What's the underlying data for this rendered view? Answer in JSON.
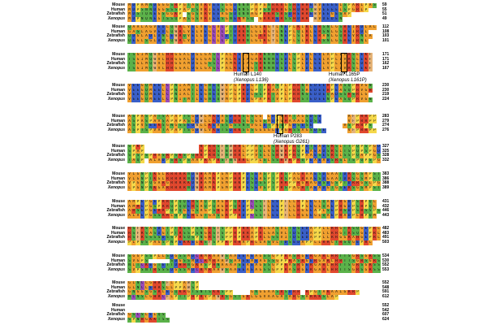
{
  "species": [
    "Mouse",
    "Human",
    "Zebrafish",
    "Xenopus"
  ],
  "palette": {
    "green": "#5bb24a",
    "orange": "#f0a030",
    "yellow": "#f5d84a",
    "red": "#e0482e",
    "blue": "#3a5fc8",
    "purple": "#9a4cb8",
    "tan": "#e6b478",
    "gap": "#ffffff"
  },
  "blocks": [
    {
      "numbers": [
        "59",
        "55",
        "51",
        "49"
      ],
      "seqs": [
        "MDPAMNDGGGSRPGTASVRVEESGGDNNNPMPGNRKRGSHEHHEWVEEEELSPARLPAS",
        "MDPSNNDGGSSSPAPTSVRIEESGGENNSPVPSNRKRGSHDHHTWVEEEELSPGRLP--",
        "MDSTQNEGSGGKP-SGSVRVEEAGSDQNNAGPRKRSRSDHEHREWVEEGESAP----",
        "MDPNQNEGTSSQPASGSVRIEESGNEKMSQ-GRKRERSSHDHR-WVDEDEN------"
      ]
    },
    {
      "numbers": [
        "112",
        "108",
        "103",
        "101"
      ],
      "seqs": [
        "QAALAGVEDLQWRLVELVEGCVCPTDRKNLGLKGYLNEPLKLKLERSNLGSREIRDLAL",
        "GASLAGVEDLQWRLVELVEGCVCPTDRKNLGLKGYLNEPLQLKLERSNLGSREIRDL--",
        "QDGLADLDNLEWRQVELLDGCLCDTERKNLGRRGYLNEPLSLHLERANLGQREVRNLA",
        "QEGLSGLDNLQWRLVELIEGCLCPTDRKNLGLKGYLNEPLSLRLEKSNLGSREIRNL-"
      ]
    },
    {
      "numbers": [
        "171",
        "171",
        "162",
        "167"
      ],
      "seqs": [
        "TSGIMQWVLHRGGALDGLGASCPALKEIAGAHNNNESDLSPLDLEELAPLIVRSLEKF",
        "TSGIMQWVLHRGGALDGLGASCPALKEIAGAHNNNESDLSPLDLEELAPLIVRSLEKF",
        "TSGLMQWVLHRGGAMDGLGSSCPAMKDIAGSRNNNDSDLSPLDLEELVPLIVRSLDKF",
        "TSGIMQWVLHRGGALDGLGASCPALKEIVGTHNNNESDLSPLDLEELVPLIVRSLEKF"
      ]
    },
    {
      "numbers": [
        "230",
        "230",
        "219",
        "224"
      ],
      "seqs": [
        "VEEGQMEELCPNIAMTLEGNEQWVPGPHDGPTPRASPLPRRNAEDEEHPEASQPRVGN",
        "VEEGQMEELCPNIAMTLEGNEQWVPGPHDGPTPRAAPLPRRSAEDEEHPEASQPRVGH",
        "VEEGQMEELCPNIALTLEGNEQWVPGPRDGSSPRTAPLPRRNSEDDEQADSSHSRLG",
        "VEEGQMEELCPNITMTLEGNEQWMPGPHDGPAPRTVPLPRRSTEDEENPEASQPRVGN"
      ]
    },
    {
      "numbers": [
        "283",
        "279",
        "274",
        "276"
      ],
      "seqs": [
        "ASPASPATSAPAPTSGDWLMKEASDRKSGSGG-LDPGHATAGSDSE------AFPRRPP",
        "ASPASPAASAPAPASGDWLLKEASDRKSGSGGSMDPGHAAAGSDSE------VFPRRPP",
        "ASPVSEEKSGNGSSEDWLLKEASSGSSNSVGLDTPGSPGDSESE-------VSPRRPS",
        "ASPTSPVATAPAPTSGDWLVKETSDRKSGSGGGGLDPGHSSAGSDSE-----VFPRRPP"
      ]
    },
    {
      "numbers": [
        "327",
        "325",
        "328",
        "332"
      ],
      "seqs": [
        "SPKP-------------KPRRSFNWRRLPPMSLVSRWRPRQPETEADSRSLTTPQPSPGD",
        "SPAP-------------KPRRSFNWRRLPPVSLVSRWRPRQPEAEADSRSLTSPQPSPGD",
        "SPSPSPRASRPSKSPQRKPRRSFNWRRLPPVSLLSRWRPRQPAAESESRSLSSPQAPPGS",
        "TAQP-ALADPSRSPSAAPRAPRSFNWRRLPPLSLSSRWRPRQPEAEADSRSLTSPQPSPGD"
      ]
    },
    {
      "numbers": [
        "383",
        "386",
        "388",
        "389"
      ],
      "seqs": [
        "VLGNPTKGLRRRRRNDWHAMKPGMPHRPDSEASPTPRSPAGRAAESDGAATDRSGSMPSTT",
        "VLGNPTKGLRRRRRNDWHAMKPGMPHRPDSEASPTPRSPAGRAAESDGAATDRSGSMPSTT",
        "VPGNPQGARGRRRRKDWHAMKPGMPHKPDSDSSPSPHRPPRGRAGDSDGSPTDRRGSLPGSP",
        "LPGNPNKGARRRRRNDWHAMKPGMPHRPESEVSPTPRSPAGRTAEADGTGSERSGSMPSTT"
      ]
    },
    {
      "numbers": [
        "431",
        "432",
        "446",
        "443"
      ],
      "seqs": [
        "AMPEPGEPRRQPQQERSAQPQAGHPQRDPCSSFLEEPFLLRPGEGLQAEPRGDPSRPQL",
        "AMREPGSPRRQPQQERSAQPQAGHPQRDPCSSFLEEPFLLRPGEGLQAEPRGDPSRPQL",
        "ARSEPGERRPQPQGEGSAGPSRGRPHRDPPSSFLEEPFLLRGGEAPLSEPRSDPSRSSPS",
        "ALAEPGSSRRLQPQERGGTGASGRPPRDPCSSFLEEPFLLRGGEGLQAEPRADPLRPQM"
      ]
    },
    {
      "numbers": [
        "482",
        "483",
        "491",
        "503"
      ],
      "seqs": [
        "RSFRSASDGTPTRSSPSNGRSFSPPRPRRAPRLGASVLTDSEDAPPLLRRGTRSQGEPRL",
        "RSFRSASDGTPTRSSPSNGRSFSPPRPRRAPRLGASVLTDSEDAPPLLRRGTRSQGEPRL",
        "RSFRSSSSDSSPRSQSPNGRSFSPPRPRRAPRLGSSVITDSEDAPPLLRRGGRAHGEPRL",
        "PLPQSPAGSPNPEKKEIKSFSPPRPRRAPRLGASVLTDSEDAPPLLRRGTRSQGEPRL"
      ]
    },
    {
      "numbers": [
        "534",
        "530",
        "552",
        "553"
      ],
      "seqs": [
        "SGGPSSPLLSDGSSMDCRMRAAWSAAEEAEAGSSGPPRASRGERGARLHRTTSGRSGRSSR",
        "SVGPS-----SDGSSMDCRMRAAWSAAEEAEAGSSGPPRASRGERGARLHRTTSGRSGRSSR",
        "NLTCKEGTETTDHHNGKASPHNAAAASEAEAGSSGPPRASRGERGARLHRTTSGRSGRSSR",
        "SVPSNTRSSSDGSSMDCRMRAAWSAAEEAEAGSSGPPRASRGERGARLHRTTSGRSGRSSR"
      ]
    },
    {
      "numbers": [
        "552",
        "548",
        "591",
        "612"
      ],
      "seqs": [
        "GLNCLGHRNFLPPAWSP----------------------------------------",
        "GLNCLEHRSLLPPAWSP----------------------------------------",
        "GNGGSGSRLEGQKRGTSNTSKKSPP----GNGGAASRSDRR-RPGTAKAALGRRP--",
        "NCNSLGHRCFLPTTPHPRVPMWRSGSTGRLGGVAAGATARGSARKKSLAP---------"
      ]
    },
    {
      "numbers": [
        "552",
        "542",
        "607",
        "624"
      ],
      "seqs": [
        "----------------------------------------",
        "----------------------------------------",
        "GSCSLELQS-------------------------------",
        "SPNHGKKTSS------------------------------"
      ]
    }
  ],
  "annotations": {
    "l140": {
      "line1": "Human L140",
      "line2": "(Xenopus L136)"
    },
    "l165": {
      "line1": "Human L165P",
      "line2": "(Xenopus L161P)"
    },
    "p283": {
      "line1": "Human P283",
      "line2": "(Xenopus G261)"
    }
  }
}
